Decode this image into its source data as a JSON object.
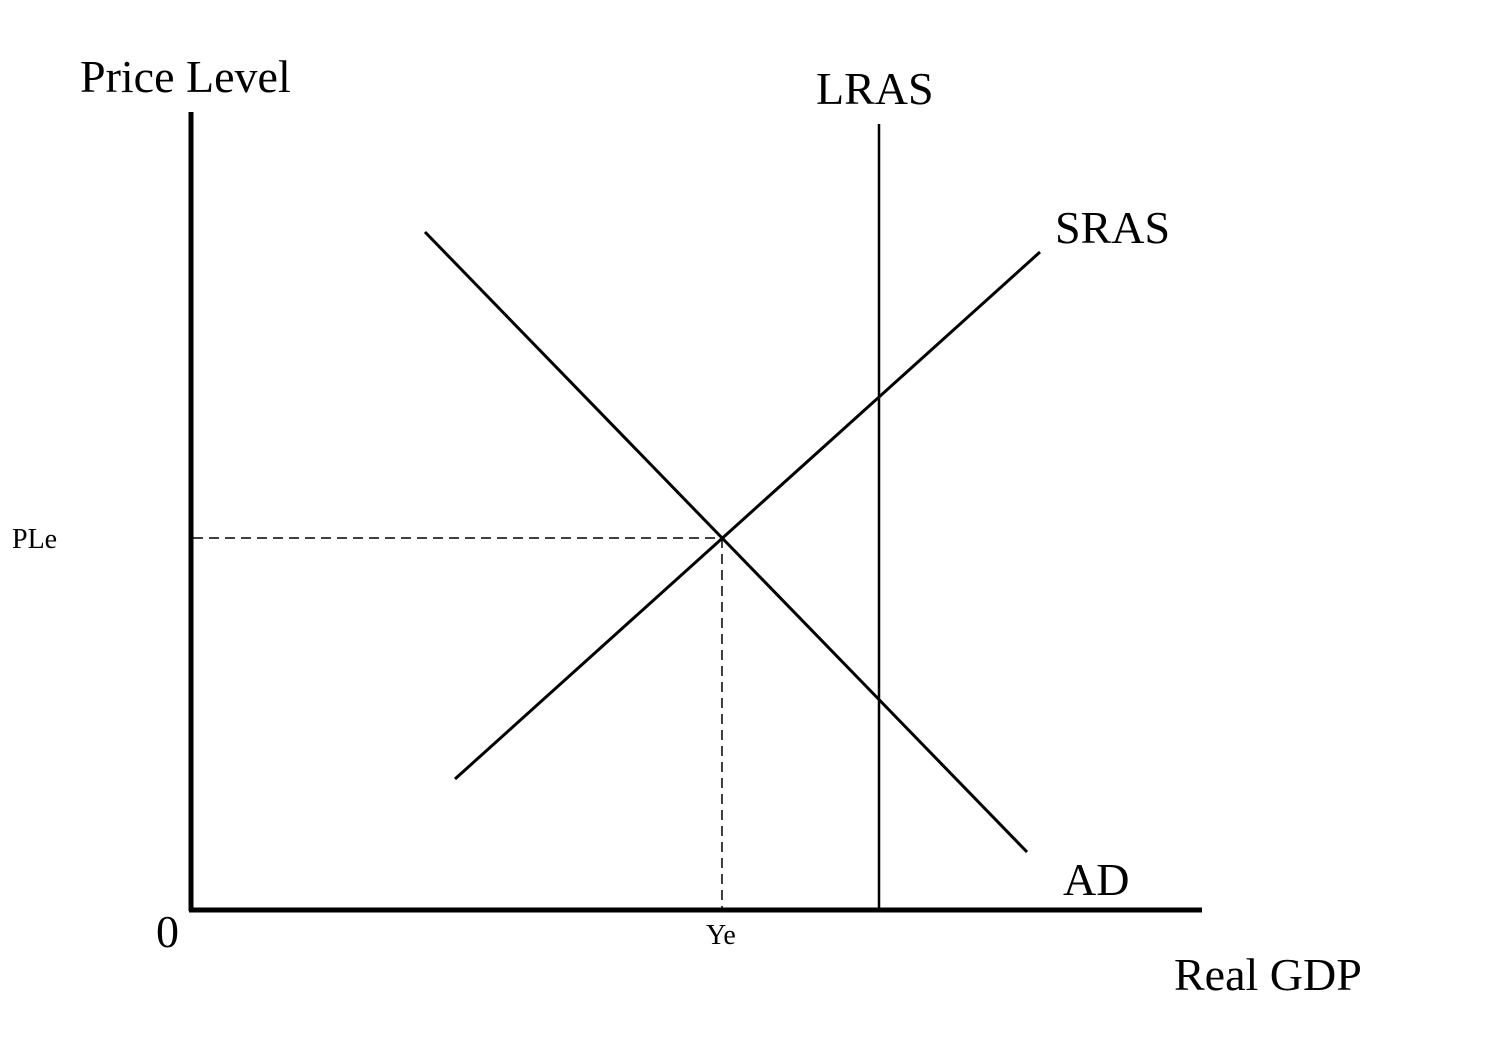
{
  "diagram": {
    "y_axis_label": "Price Level",
    "x_axis_label": "Real GDP",
    "origin_label": "0",
    "equilibrium_price_label": "PLe",
    "equilibrium_output_label": "Ye",
    "curves": {
      "lras": "LRAS",
      "sras": "SRAS",
      "ad": "AD"
    },
    "line_color": "#000000"
  }
}
